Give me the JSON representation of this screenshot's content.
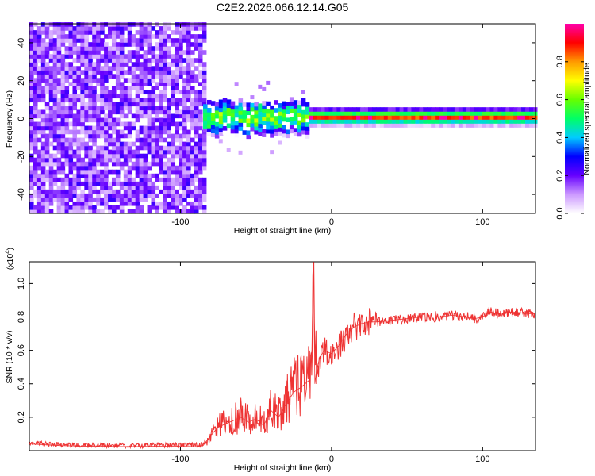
{
  "chart_data": [
    {
      "id": "spectrogram",
      "type": "heatmap",
      "title": "C2E2.2026.066.12.14.G05",
      "xlabel": "Height of straight line (km)",
      "ylabel": "Frequency (Hz)",
      "xlim": [
        -200,
        135
      ],
      "ylim": [
        -50,
        50
      ],
      "xticks": [
        {
          "v": -100,
          "label": "-100"
        },
        {
          "v": 0,
          "label": "0"
        },
        {
          "v": 100,
          "label": "100"
        }
      ],
      "yticks": [
        {
          "v": 40,
          "label": "40"
        },
        {
          "v": 20,
          "label": "20"
        },
        {
          "v": 0,
          "label": "0"
        },
        {
          "v": -20,
          "label": "-20"
        },
        {
          "v": -40,
          "label": "-40"
        }
      ],
      "noise_region_end_x": -85,
      "signal_frequency_hz": 0,
      "colorbar": {
        "label": "Normalized spectral amplitude",
        "range": [
          0,
          1
        ],
        "ticks": [
          {
            "v": 0.0,
            "label": "0.0"
          },
          {
            "v": 0.2,
            "label": "0.2"
          },
          {
            "v": 0.4,
            "label": "0.4"
          },
          {
            "v": 0.6,
            "label": "0.6"
          },
          {
            "v": 0.8,
            "label": "0.8"
          }
        ],
        "colors": [
          "#ffffff",
          "#cc99ff",
          "#6600ff",
          "#0000ff",
          "#00ccff",
          "#00ff66",
          "#66ff00",
          "#ffff00",
          "#ff9900",
          "#ff0000",
          "#ff00aa"
        ]
      }
    },
    {
      "id": "snr",
      "type": "line",
      "xlabel": "Height of straight line (km)",
      "ylabel": "SNR (10 * v/v)",
      "multiplier_label": "(x10",
      "multiplier_exp": "4",
      "multiplier_close": ")",
      "xlim": [
        -200,
        135
      ],
      "ylim": [
        0,
        1.13
      ],
      "xticks": [
        {
          "v": -100,
          "label": "-100"
        },
        {
          "v": 0,
          "label": "0"
        },
        {
          "v": 100,
          "label": "100"
        }
      ],
      "yticks": [
        {
          "v": 0.2,
          "label": "0.2"
        },
        {
          "v": 0.4,
          "label": "0.4"
        },
        {
          "v": 0.6,
          "label": "0.6"
        },
        {
          "v": 0.8,
          "label": "0.8"
        },
        {
          "v": 1.0,
          "label": "1.0"
        }
      ],
      "line_color": "#ee3333",
      "series": [
        {
          "name": "SNR",
          "x": [
            -200,
            -190,
            -180,
            -170,
            -160,
            -150,
            -140,
            -130,
            -120,
            -110,
            -100,
            -90,
            -85,
            -80,
            -75,
            -70,
            -65,
            -60,
            -55,
            -50,
            -45,
            -40,
            -35,
            -30,
            -25,
            -20,
            -15,
            -13,
            -12,
            -11,
            -10,
            -8,
            -5,
            0,
            5,
            10,
            15,
            20,
            25,
            30,
            40,
            50,
            60,
            70,
            80,
            90,
            95,
            100,
            105,
            110,
            120,
            130,
            135
          ],
          "y": [
            0.04,
            0.035,
            0.03,
            0.028,
            0.025,
            0.025,
            0.024,
            0.024,
            0.025,
            0.026,
            0.027,
            0.028,
            0.03,
            0.09,
            0.14,
            0.16,
            0.18,
            0.2,
            0.17,
            0.19,
            0.15,
            0.24,
            0.2,
            0.28,
            0.35,
            0.38,
            0.42,
            0.6,
            1.13,
            0.4,
            0.48,
            0.55,
            0.6,
            0.58,
            0.63,
            0.7,
            0.74,
            0.76,
            0.77,
            0.77,
            0.78,
            0.79,
            0.8,
            0.8,
            0.81,
            0.8,
            0.79,
            0.8,
            0.83,
            0.82,
            0.83,
            0.82,
            0.82
          ]
        }
      ]
    }
  ]
}
